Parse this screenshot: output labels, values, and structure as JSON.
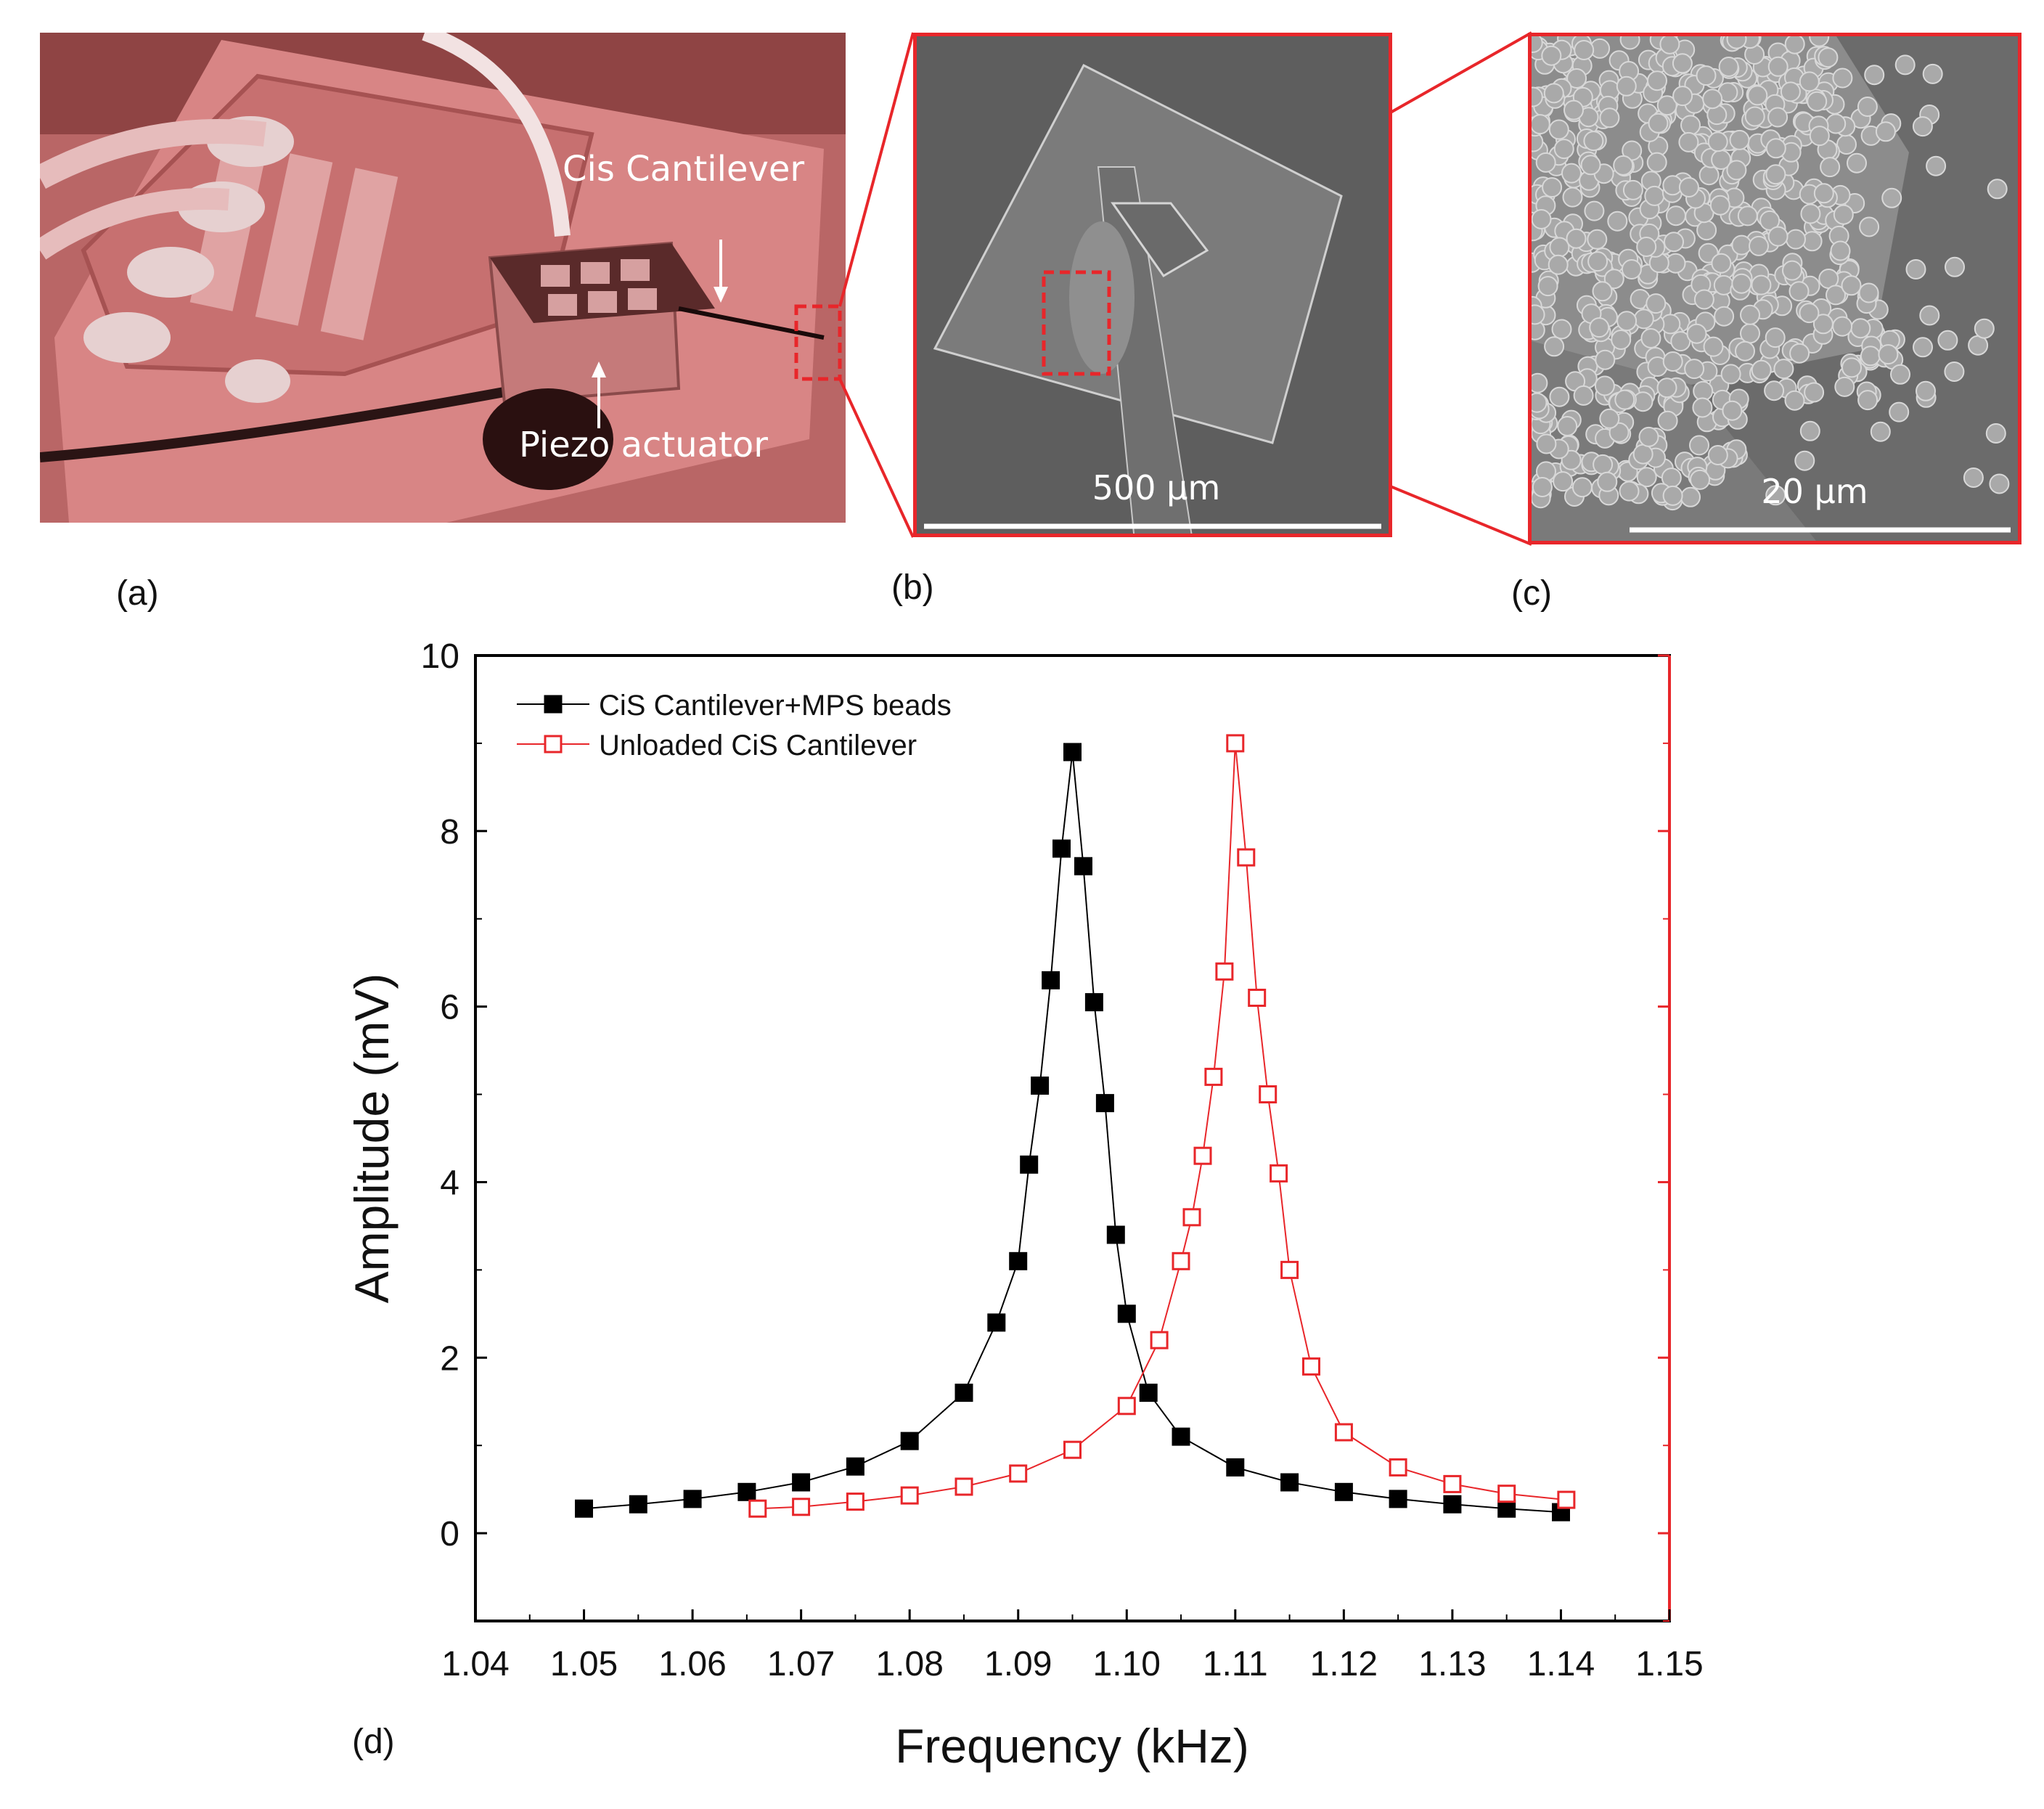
{
  "panels": {
    "a": {
      "label": "(a)",
      "annotation_cantilever": "Cis Cantilever",
      "annotation_piezo": "Piezo actuator"
    },
    "b": {
      "label": "(b)",
      "scalebar": "500 µm"
    },
    "c": {
      "label": "(c)",
      "scalebar": "20 µm"
    },
    "d": {
      "label": "(d)"
    }
  },
  "colors": {
    "highlight": "#e8262a",
    "photo_tint": "#d98383",
    "sem_gray": "#5e5e5e",
    "series_loaded": "#000000",
    "series_unloaded": "#e8262a"
  },
  "chart_data": {
    "type": "scatter",
    "xlabel": "Frequency (kHz)",
    "ylabel": "Amplitude (mV)",
    "xlim": [
      1.04,
      1.15
    ],
    "ylim": [
      -1,
      10
    ],
    "xticks": [
      "1.04",
      "1.05",
      "1.06",
      "1.07",
      "1.08",
      "1.09",
      "1.10",
      "1.11",
      "1.12",
      "1.13",
      "1.14",
      "1.15"
    ],
    "yticks": [
      "0",
      "2",
      "4",
      "6",
      "8",
      "10"
    ],
    "legend_position": "top-left",
    "series": [
      {
        "name": "CiS Cantilever+MPS beads",
        "marker": "filled-square",
        "color": "#000000",
        "x": [
          1.05,
          1.055,
          1.06,
          1.065,
          1.07,
          1.075,
          1.08,
          1.085,
          1.088,
          1.09,
          1.091,
          1.092,
          1.093,
          1.094,
          1.095,
          1.096,
          1.097,
          1.098,
          1.099,
          1.1,
          1.102,
          1.105,
          1.11,
          1.115,
          1.12,
          1.125,
          1.13,
          1.135,
          1.14
        ],
        "y": [
          0.28,
          0.33,
          0.39,
          0.47,
          0.58,
          0.76,
          1.05,
          1.6,
          2.4,
          3.1,
          4.2,
          5.1,
          6.3,
          7.8,
          8.9,
          7.6,
          6.05,
          4.9,
          3.4,
          2.5,
          1.6,
          1.1,
          0.75,
          0.58,
          0.47,
          0.39,
          0.33,
          0.28,
          0.24
        ]
      },
      {
        "name": "Unloaded CiS Cantilever",
        "marker": "open-square",
        "color": "#e8262a",
        "x": [
          1.066,
          1.07,
          1.075,
          1.08,
          1.085,
          1.09,
          1.095,
          1.1,
          1.103,
          1.105,
          1.106,
          1.107,
          1.108,
          1.109,
          1.11,
          1.111,
          1.112,
          1.113,
          1.114,
          1.115,
          1.117,
          1.12,
          1.125,
          1.13,
          1.135,
          1.1405
        ],
        "y": [
          0.28,
          0.3,
          0.36,
          0.43,
          0.53,
          0.68,
          0.95,
          1.45,
          2.2,
          3.1,
          3.6,
          4.3,
          5.2,
          6.4,
          9.0,
          7.7,
          6.1,
          5.0,
          4.1,
          3.0,
          1.9,
          1.15,
          0.75,
          0.56,
          0.45,
          0.38
        ]
      }
    ]
  }
}
